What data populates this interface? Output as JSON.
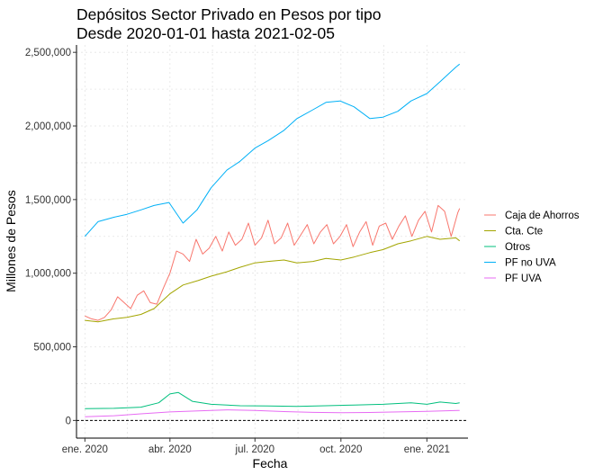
{
  "chart_data": {
    "type": "line",
    "title": "Depósitos Sector Privado en Pesos por tipo",
    "subtitle": "Desde 2020-01-01 hasta 2021-02-05",
    "xlabel": "Fecha",
    "ylabel": "Millones de Pesos",
    "x_range": [
      "2019-12-23",
      "2021-02-14"
    ],
    "ylim": [
      -120000,
      2550000
    ],
    "y_ticks": [
      0,
      500000,
      1000000,
      1500000,
      2000000,
      2500000
    ],
    "y_tick_labels": [
      "0",
      "500,000",
      "1,000,000",
      "1,500,000",
      "2,000,000",
      "2,500,000"
    ],
    "x_ticks": [
      "2020-01-01",
      "2020-04-01",
      "2020-07-01",
      "2020-10-01",
      "2021-01-01"
    ],
    "x_tick_labels": [
      "ene. 2020",
      "abr. 2020",
      "jul. 2020",
      "oct. 2020",
      "ene. 2021"
    ],
    "grid": true,
    "legend_position": "right",
    "reference_line": {
      "y": 0,
      "style": "dashed"
    },
    "series": [
      {
        "name": "Caja de Ahorros",
        "color": "#F8766D",
        "x": [
          "2020-01-01",
          "2020-01-08",
          "2020-01-15",
          "2020-01-22",
          "2020-01-29",
          "2020-02-05",
          "2020-02-12",
          "2020-02-19",
          "2020-02-26",
          "2020-03-04",
          "2020-03-11",
          "2020-03-18",
          "2020-03-25",
          "2020-04-01",
          "2020-04-08",
          "2020-04-15",
          "2020-04-22",
          "2020-04-29",
          "2020-05-06",
          "2020-05-13",
          "2020-05-20",
          "2020-05-27",
          "2020-06-03",
          "2020-06-10",
          "2020-06-17",
          "2020-06-24",
          "2020-07-01",
          "2020-07-08",
          "2020-07-15",
          "2020-07-22",
          "2020-07-29",
          "2020-08-05",
          "2020-08-12",
          "2020-08-19",
          "2020-08-26",
          "2020-09-02",
          "2020-09-09",
          "2020-09-16",
          "2020-09-23",
          "2020-09-30",
          "2020-10-07",
          "2020-10-14",
          "2020-10-21",
          "2020-10-28",
          "2020-11-04",
          "2020-11-11",
          "2020-11-18",
          "2020-11-25",
          "2020-12-02",
          "2020-12-09",
          "2020-12-16",
          "2020-12-23",
          "2020-12-30",
          "2021-01-06",
          "2021-01-13",
          "2021-01-20",
          "2021-01-27",
          "2021-02-03",
          "2021-02-05"
        ],
        "values": [
          710000,
          690000,
          680000,
          700000,
          750000,
          840000,
          800000,
          760000,
          850000,
          880000,
          800000,
          790000,
          900000,
          1000000,
          1150000,
          1130000,
          1080000,
          1230000,
          1130000,
          1170000,
          1250000,
          1150000,
          1280000,
          1190000,
          1230000,
          1340000,
          1190000,
          1240000,
          1360000,
          1200000,
          1240000,
          1340000,
          1190000,
          1260000,
          1330000,
          1200000,
          1280000,
          1330000,
          1200000,
          1250000,
          1330000,
          1180000,
          1280000,
          1350000,
          1190000,
          1320000,
          1340000,
          1230000,
          1320000,
          1390000,
          1250000,
          1360000,
          1420000,
          1280000,
          1460000,
          1420000,
          1250000,
          1410000,
          1440000
        ]
      },
      {
        "name": "Cta. Cte",
        "color": "#A3A500",
        "x": [
          "2020-01-01",
          "2020-01-15",
          "2020-02-01",
          "2020-02-15",
          "2020-03-01",
          "2020-03-15",
          "2020-04-01",
          "2020-04-15",
          "2020-05-01",
          "2020-05-15",
          "2020-06-01",
          "2020-06-15",
          "2020-07-01",
          "2020-07-15",
          "2020-08-01",
          "2020-08-15",
          "2020-09-01",
          "2020-09-15",
          "2020-10-01",
          "2020-10-15",
          "2020-11-01",
          "2020-11-15",
          "2020-12-01",
          "2020-12-15",
          "2021-01-01",
          "2021-01-15",
          "2021-02-01",
          "2021-02-05"
        ],
        "values": [
          680000,
          670000,
          690000,
          700000,
          720000,
          760000,
          860000,
          920000,
          950000,
          980000,
          1010000,
          1040000,
          1070000,
          1080000,
          1090000,
          1070000,
          1080000,
          1100000,
          1090000,
          1110000,
          1140000,
          1160000,
          1200000,
          1220000,
          1250000,
          1230000,
          1240000,
          1220000
        ]
      },
      {
        "name": "Otros",
        "color": "#00BF7D",
        "x": [
          "2020-01-01",
          "2020-02-01",
          "2020-03-01",
          "2020-03-20",
          "2020-04-01",
          "2020-04-10",
          "2020-04-25",
          "2020-05-15",
          "2020-06-15",
          "2020-07-15",
          "2020-08-15",
          "2020-09-15",
          "2020-10-15",
          "2020-11-15",
          "2020-12-15",
          "2021-01-01",
          "2021-01-15",
          "2021-02-01",
          "2021-02-05"
        ],
        "values": [
          80000,
          82000,
          90000,
          120000,
          180000,
          190000,
          130000,
          110000,
          100000,
          98000,
          95000,
          100000,
          105000,
          110000,
          120000,
          110000,
          125000,
          115000,
          120000
        ]
      },
      {
        "name": "PF no UVA",
        "color": "#00B0F6",
        "x": [
          "2020-01-01",
          "2020-01-15",
          "2020-02-01",
          "2020-02-15",
          "2020-03-01",
          "2020-03-15",
          "2020-03-31",
          "2020-04-15",
          "2020-04-30",
          "2020-05-15",
          "2020-06-01",
          "2020-06-15",
          "2020-07-01",
          "2020-07-15",
          "2020-08-01",
          "2020-08-15",
          "2020-09-01",
          "2020-09-15",
          "2020-09-30",
          "2020-10-15",
          "2020-11-01",
          "2020-11-15",
          "2020-12-01",
          "2020-12-15",
          "2021-01-01",
          "2021-01-15",
          "2021-02-01",
          "2021-02-05"
        ],
        "values": [
          1250000,
          1350000,
          1380000,
          1400000,
          1430000,
          1460000,
          1480000,
          1340000,
          1430000,
          1580000,
          1700000,
          1760000,
          1850000,
          1900000,
          1970000,
          2050000,
          2110000,
          2160000,
          2170000,
          2130000,
          2050000,
          2060000,
          2100000,
          2170000,
          2220000,
          2300000,
          2400000,
          2420000
        ]
      },
      {
        "name": "PF UVA",
        "color": "#E76BF3",
        "x": [
          "2020-01-01",
          "2020-02-01",
          "2020-03-01",
          "2020-04-01",
          "2020-05-01",
          "2020-06-01",
          "2020-07-01",
          "2020-08-01",
          "2020-09-01",
          "2020-10-01",
          "2020-11-01",
          "2020-12-01",
          "2021-01-01",
          "2021-02-05"
        ],
        "values": [
          25000,
          32000,
          45000,
          58000,
          65000,
          72000,
          68000,
          60000,
          55000,
          52000,
          54000,
          58000,
          62000,
          68000
        ]
      }
    ]
  }
}
